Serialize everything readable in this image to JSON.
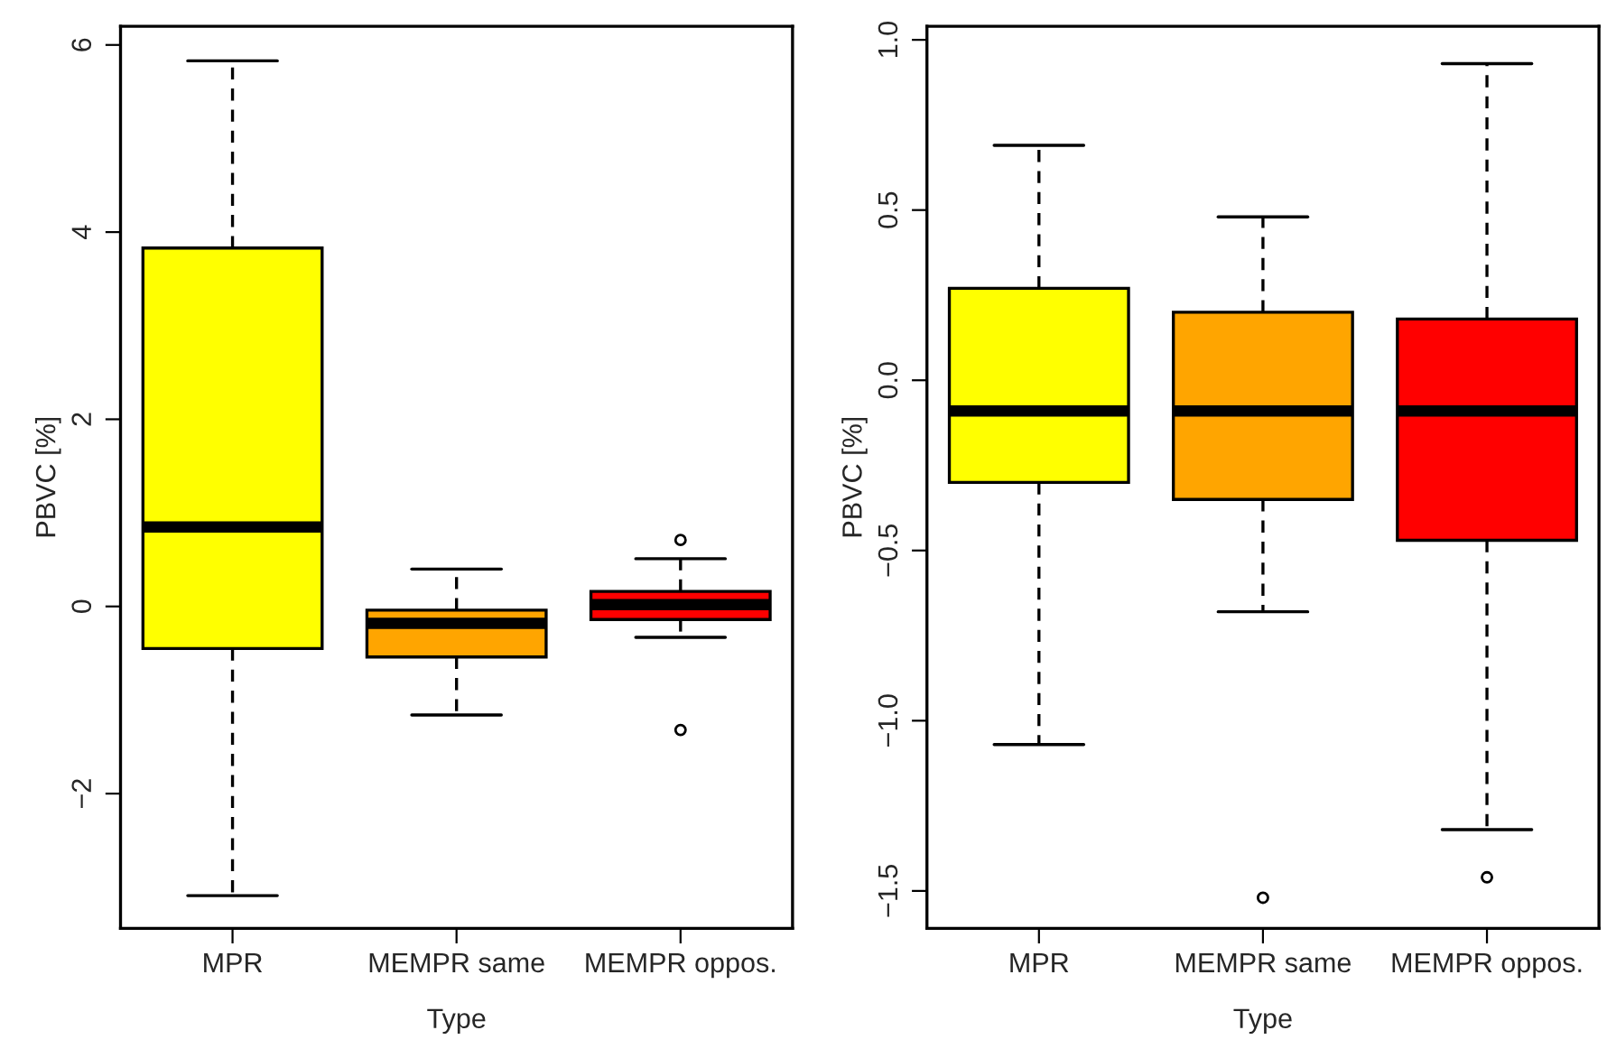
{
  "chart_data": [
    {
      "type": "box",
      "xlabel": "Type",
      "ylabel": "PBVC [%]",
      "categories": [
        "MPR",
        "MEMPR same",
        "MEMPR oppos."
      ],
      "colors": [
        "#ffff00",
        "#ffa500",
        "#ff0000"
      ],
      "ylim": [
        -3.44,
        6.2
      ],
      "yticks": [
        {
          "value": -2,
          "label": "−2"
        },
        0,
        2,
        4,
        6
      ],
      "grid": false,
      "boxes": [
        {
          "low": -3.09,
          "q1": -0.45,
          "median": 0.85,
          "q3": 3.83,
          "high": 5.83
        },
        {
          "low": -1.16,
          "q1": -0.54,
          "median": -0.18,
          "q3": -0.04,
          "high": 0.4
        },
        {
          "low": -0.33,
          "q1": -0.14,
          "median": 0.02,
          "q3": 0.16,
          "high": 0.51,
          "outliers": [
            0.71,
            -1.32
          ]
        }
      ]
    },
    {
      "type": "box",
      "xlabel": "Type",
      "ylabel": "PBVC [%]",
      "categories": [
        "MPR",
        "MEMPR same",
        "MEMPR oppos."
      ],
      "colors": [
        "#ffff00",
        "#ffa500",
        "#ff0000"
      ],
      "ylim": [
        -1.61,
        1.04
      ],
      "yticks": [
        {
          "value": -1.5,
          "label": "−1.5"
        },
        {
          "value": -1.0,
          "label": "−1.0"
        },
        {
          "value": -0.5,
          "label": "−0.5"
        },
        {
          "value": 0.0,
          "label": "0.0"
        },
        {
          "value": 0.5,
          "label": "0.5"
        },
        {
          "value": 1.0,
          "label": "1.0"
        }
      ],
      "grid": false,
      "boxes": [
        {
          "low": -1.07,
          "q1": -0.3,
          "median": -0.09,
          "q3": 0.27,
          "high": 0.69
        },
        {
          "low": -0.68,
          "q1": -0.35,
          "median": -0.09,
          "q3": 0.2,
          "high": 0.48,
          "outliers": [
            -1.52
          ]
        },
        {
          "low": -1.32,
          "q1": -0.47,
          "median": -0.09,
          "q3": 0.18,
          "high": 0.93,
          "outliers": [
            -1.46
          ]
        }
      ]
    }
  ]
}
